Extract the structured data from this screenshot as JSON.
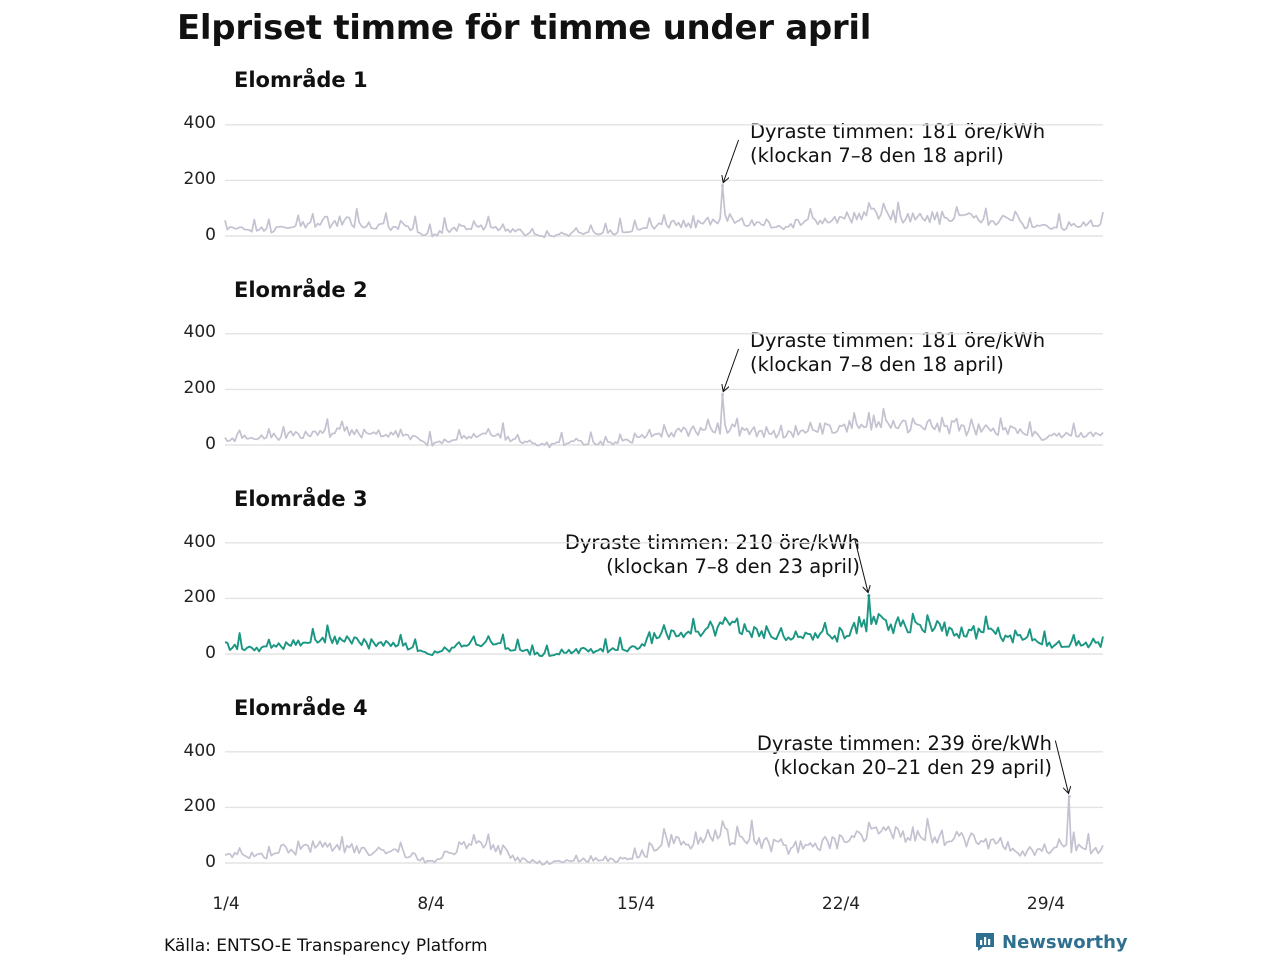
{
  "title": "Elpriset timme för timme under april",
  "source": "Källa: ENTSO-E Transparency Platform",
  "brand": "Newsworthy",
  "colors": {
    "highlight": "#1a9683",
    "muted": "#c2c2d0",
    "grid": "#e3e3e3",
    "brand": "#2f6f8f"
  },
  "chart_data": [
    {
      "type": "line",
      "title": "Elområde 1",
      "highlight": false,
      "y_ticks": [
        "0",
        "200",
        "400"
      ],
      "x_ticks": [
        "1/4",
        "8/4",
        "15/4",
        "22/4",
        "29/4"
      ],
      "annotation": {
        "line1": "Dyraste timmen: 181 öre/kWh",
        "line2": "(klockan 7–8 den 18 april)"
      },
      "peak": {
        "day": 18,
        "value": 181
      },
      "series_profile": [
        [
          1,
          45
        ],
        [
          2,
          35
        ],
        [
          3,
          50
        ],
        [
          4,
          65
        ],
        [
          5,
          80
        ],
        [
          6,
          55
        ],
        [
          7,
          60
        ],
        [
          8,
          10
        ],
        [
          9,
          45
        ],
        [
          10,
          60
        ],
        [
          11,
          30
        ],
        [
          12,
          5
        ],
        [
          13,
          25
        ],
        [
          14,
          20
        ],
        [
          15,
          35
        ],
        [
          16,
          60
        ],
        [
          17,
          75
        ],
        [
          18,
          90
        ],
        [
          19,
          70
        ],
        [
          20,
          50
        ],
        [
          21,
          80
        ],
        [
          22,
          85
        ],
        [
          23,
          120
        ],
        [
          24,
          100
        ],
        [
          25,
          95
        ],
        [
          26,
          90
        ],
        [
          27,
          85
        ],
        [
          28,
          80
        ],
        [
          29,
          50
        ],
        [
          30,
          55
        ],
        [
          31,
          60
        ]
      ],
      "ylim": [
        0,
        400
      ],
      "xlim": [
        1,
        31
      ]
    },
    {
      "type": "line",
      "title": "Elområde 2",
      "highlight": false,
      "y_ticks": [
        "0",
        "200",
        "400"
      ],
      "x_ticks": [
        "1/4",
        "8/4",
        "15/4",
        "22/4",
        "29/4"
      ],
      "annotation": {
        "line1": "Dyraste timmen: 181 öre/kWh",
        "line2": "(klockan 7–8 den 18 april)"
      },
      "peak": {
        "day": 18,
        "value": 181
      },
      "series_profile": [
        [
          1,
          45
        ],
        [
          2,
          35
        ],
        [
          3,
          50
        ],
        [
          4,
          65
        ],
        [
          5,
          80
        ],
        [
          6,
          55
        ],
        [
          7,
          60
        ],
        [
          8,
          10
        ],
        [
          9,
          45
        ],
        [
          10,
          60
        ],
        [
          11,
          30
        ],
        [
          12,
          5
        ],
        [
          13,
          25
        ],
        [
          14,
          20
        ],
        [
          15,
          35
        ],
        [
          16,
          60
        ],
        [
          17,
          75
        ],
        [
          18,
          90
        ],
        [
          19,
          70
        ],
        [
          20,
          50
        ],
        [
          21,
          80
        ],
        [
          22,
          85
        ],
        [
          23,
          120
        ],
        [
          24,
          100
        ],
        [
          25,
          95
        ],
        [
          26,
          90
        ],
        [
          27,
          85
        ],
        [
          28,
          80
        ],
        [
          29,
          50
        ],
        [
          30,
          55
        ],
        [
          31,
          60
        ]
      ],
      "ylim": [
        0,
        400
      ],
      "xlim": [
        1,
        31
      ]
    },
    {
      "type": "line",
      "title": "Elområde 3",
      "highlight": true,
      "y_ticks": [
        "0",
        "200",
        "400"
      ],
      "x_ticks": [
        "1/4",
        "8/4",
        "15/4",
        "22/4",
        "29/4"
      ],
      "annotation": {
        "line1": "Dyraste timmen: 210 öre/kWh",
        "line2": "(klockan 7–8 den 23 april)"
      },
      "peak": {
        "day": 23,
        "value": 210
      },
      "series_profile": [
        [
          1,
          45
        ],
        [
          2,
          35
        ],
        [
          3,
          50
        ],
        [
          4,
          65
        ],
        [
          5,
          80
        ],
        [
          6,
          55
        ],
        [
          7,
          60
        ],
        [
          8,
          10
        ],
        [
          9,
          45
        ],
        [
          10,
          60
        ],
        [
          11,
          30
        ],
        [
          12,
          5
        ],
        [
          13,
          25
        ],
        [
          14,
          20
        ],
        [
          15,
          35
        ],
        [
          16,
          100
        ],
        [
          17,
          110
        ],
        [
          18,
          140
        ],
        [
          19,
          110
        ],
        [
          20,
          80
        ],
        [
          21,
          90
        ],
        [
          22,
          100
        ],
        [
          23,
          160
        ],
        [
          24,
          140
        ],
        [
          25,
          130
        ],
        [
          26,
          120
        ],
        [
          27,
          110
        ],
        [
          28,
          90
        ],
        [
          29,
          50
        ],
        [
          30,
          60
        ],
        [
          31,
          60
        ]
      ],
      "ylim": [
        0,
        400
      ],
      "xlim": [
        1,
        31
      ]
    },
    {
      "type": "line",
      "title": "Elområde 4",
      "highlight": false,
      "y_ticks": [
        "0",
        "200",
        "400"
      ],
      "x_ticks": [
        "1/4",
        "8/4",
        "15/4",
        "22/4",
        "29/4"
      ],
      "annotation": {
        "line1": "Dyraste timmen: 239 öre/kWh",
        "line2": "(klockan 20–21 den 29 april)"
      },
      "peak": {
        "day": 29.85,
        "value": 239
      },
      "series_profile": [
        [
          1,
          45
        ],
        [
          2,
          40
        ],
        [
          3,
          70
        ],
        [
          4,
          90
        ],
        [
          5,
          80
        ],
        [
          6,
          60
        ],
        [
          7,
          65
        ],
        [
          8,
          15
        ],
        [
          9,
          80
        ],
        [
          10,
          100
        ],
        [
          11,
          30
        ],
        [
          12,
          5
        ],
        [
          13,
          25
        ],
        [
          14,
          20
        ],
        [
          15,
          30
        ],
        [
          16,
          110
        ],
        [
          17,
          120
        ],
        [
          18,
          140
        ],
        [
          19,
          115
        ],
        [
          20,
          80
        ],
        [
          21,
          95
        ],
        [
          22,
          110
        ],
        [
          23,
          160
        ],
        [
          24,
          140
        ],
        [
          25,
          135
        ],
        [
          26,
          120
        ],
        [
          27,
          110
        ],
        [
          28,
          70
        ],
        [
          29,
          60
        ],
        [
          30,
          90
        ],
        [
          31,
          60
        ]
      ],
      "ylim": [
        0,
        400
      ],
      "xlim": [
        1,
        31
      ]
    }
  ]
}
